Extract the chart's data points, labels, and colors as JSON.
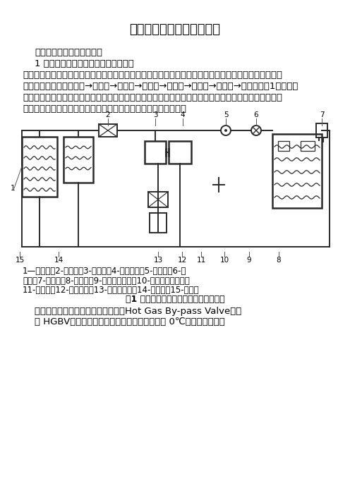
{
  "title": "两种大型客车空调制冷系统",
  "title_fontsize": 13,
  "body_fontsize": 9.5,
  "background_color": "#ffffff",
  "text_color": "#000000",
  "para1": "两种大型客车空调制冷系统",
  "para2": "1 热气旁通阀控制式独立空调制冷系统",
  "para3": "在热气旁通阀控制式独立空调制冷系统中，制冷剂的循环和在一般空调中制冷剂的循环基本相同，即制冷剂的循环为：压缩机→冷凝器→储液器→过冷器→干燥器→膨胀阀→蒸发器→压缩机（图1）。压缩机曲轴通过联轴器与副发动机（辅助发动机）的飞轮直接连接，由副发动机驱动。由于大客车空调制冷量大，所以一般在冷凝器后还设置有过冷器，以进一步冷却制冷剂。",
  "caption_line1": "1—过冷器；2-干燥器；3-压缩机；4-副发动机；5-视液镜；6-膨",
  "caption_line2": "胀阀；7-蓄电池；8-恒温器；9-外平衡管接口；10-波纹管式恒温器；",
  "caption_line3": "11-蒸发器；12-外平衡管；13-热气旁通阀；14-储液器；15-冷凝器",
  "fig_caption": "图1 热气旁通阀控制式独立空调制冷系统",
  "body_text2_line1": "在空调制冷系统中设有热气旁通阀（Hot Gas By-pass Valve，简",
  "body_text2_line2": "称 HGBV），其功用是：当蒸发器表面温度降到 0℃时，将从冷凝器"
}
